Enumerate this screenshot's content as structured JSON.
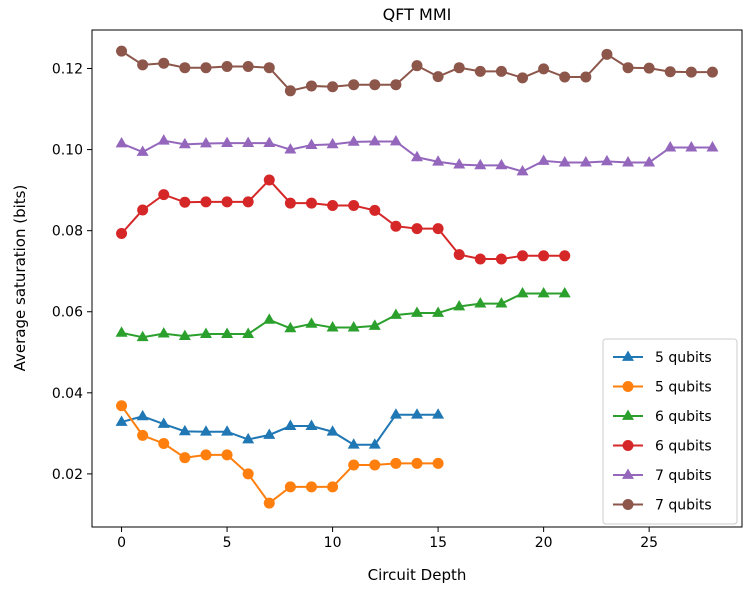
{
  "chart_data": {
    "type": "line",
    "title": "QFT MMI",
    "xlabel": "Circuit Depth",
    "ylabel": "Average saturation (bits)",
    "xlim": [
      -1.4,
      29.4
    ],
    "ylim": [
      0.0069,
      0.1295
    ],
    "xticks": [
      0,
      5,
      10,
      15,
      20,
      25
    ],
    "xtick_labels": [
      "0",
      "5",
      "10",
      "15",
      "20",
      "25"
    ],
    "yticks": [
      0.02,
      0.04,
      0.06,
      0.08,
      0.1,
      0.12
    ],
    "ytick_labels": [
      "0.02",
      "0.04",
      "0.06",
      "0.08",
      "0.10",
      "0.12"
    ],
    "grid": false,
    "legend_position": "lower-right",
    "series": [
      {
        "name": "5 qubits",
        "color": "#1f77b4",
        "marker": "triangle",
        "x": [
          0,
          1,
          2,
          3,
          4,
          5,
          6,
          7,
          8,
          9,
          10,
          11,
          12,
          13,
          14,
          15
        ],
        "y": [
          0.0328,
          0.0342,
          0.0323,
          0.0305,
          0.0304,
          0.0304,
          0.0285,
          0.0296,
          0.0318,
          0.0318,
          0.0304,
          0.0272,
          0.0272,
          0.0346,
          0.0346,
          0.0346
        ]
      },
      {
        "name": "5 qubits",
        "color": "#ff7f0e",
        "marker": "circle",
        "x": [
          0,
          1,
          2,
          3,
          4,
          5,
          6,
          7,
          8,
          9,
          10,
          11,
          12,
          13,
          14,
          15
        ],
        "y": [
          0.0368,
          0.0295,
          0.0275,
          0.024,
          0.0247,
          0.0247,
          0.02,
          0.0128,
          0.0168,
          0.0168,
          0.0168,
          0.0222,
          0.0222,
          0.0226,
          0.0226,
          0.0226
        ]
      },
      {
        "name": "6 qubits",
        "color": "#2ca02c",
        "marker": "triangle",
        "x": [
          0,
          1,
          2,
          3,
          4,
          5,
          6,
          7,
          8,
          9,
          10,
          11,
          12,
          13,
          14,
          15,
          16,
          17,
          18,
          19,
          20,
          21
        ],
        "y": [
          0.0548,
          0.0537,
          0.0546,
          0.054,
          0.0545,
          0.0545,
          0.0545,
          0.058,
          0.0559,
          0.057,
          0.0561,
          0.0561,
          0.0565,
          0.0592,
          0.0597,
          0.0597,
          0.0613,
          0.062,
          0.062,
          0.0645,
          0.0645,
          0.0645
        ]
      },
      {
        "name": "6 qubits",
        "color": "#d62728",
        "marker": "circle",
        "x": [
          0,
          1,
          2,
          3,
          4,
          5,
          6,
          7,
          8,
          9,
          10,
          11,
          12,
          13,
          14,
          15,
          16,
          17,
          18,
          19,
          20,
          21
        ],
        "y": [
          0.0793,
          0.0851,
          0.0889,
          0.087,
          0.0871,
          0.0871,
          0.0871,
          0.0925,
          0.0868,
          0.0868,
          0.0862,
          0.0862,
          0.085,
          0.0811,
          0.0805,
          0.0805,
          0.0741,
          0.073,
          0.073,
          0.0738,
          0.0738,
          0.0738
        ]
      },
      {
        "name": "7 qubits",
        "color": "#9467bd",
        "marker": "triangle",
        "x": [
          0,
          1,
          2,
          3,
          4,
          5,
          6,
          7,
          8,
          9,
          10,
          11,
          12,
          13,
          14,
          15,
          16,
          17,
          18,
          19,
          20,
          21,
          22,
          23,
          24,
          25,
          26,
          27,
          28
        ],
        "y": [
          0.1015,
          0.0994,
          0.1022,
          0.1013,
          0.1015,
          0.1016,
          0.1016,
          0.1016,
          0.1,
          0.1011,
          0.1013,
          0.1019,
          0.102,
          0.102,
          0.0981,
          0.097,
          0.0963,
          0.0961,
          0.0961,
          0.0946,
          0.0972,
          0.0968,
          0.0968,
          0.0971,
          0.0968,
          0.0968,
          0.1005,
          0.1005,
          0.1005
        ]
      },
      {
        "name": "7 qubits",
        "color": "#8c564b",
        "marker": "circle",
        "x": [
          0,
          1,
          2,
          3,
          4,
          5,
          6,
          7,
          8,
          9,
          10,
          11,
          12,
          13,
          14,
          15,
          16,
          17,
          18,
          19,
          20,
          21,
          22,
          23,
          24,
          25,
          26,
          27,
          28
        ],
        "y": [
          0.1243,
          0.1209,
          0.1213,
          0.1202,
          0.1202,
          0.1205,
          0.1205,
          0.1202,
          0.1145,
          0.1157,
          0.1155,
          0.116,
          0.116,
          0.116,
          0.1207,
          0.118,
          0.1202,
          0.1193,
          0.1193,
          0.1177,
          0.1199,
          0.1179,
          0.1179,
          0.1235,
          0.1202,
          0.1201,
          0.1192,
          0.1191,
          0.1191
        ]
      }
    ]
  }
}
